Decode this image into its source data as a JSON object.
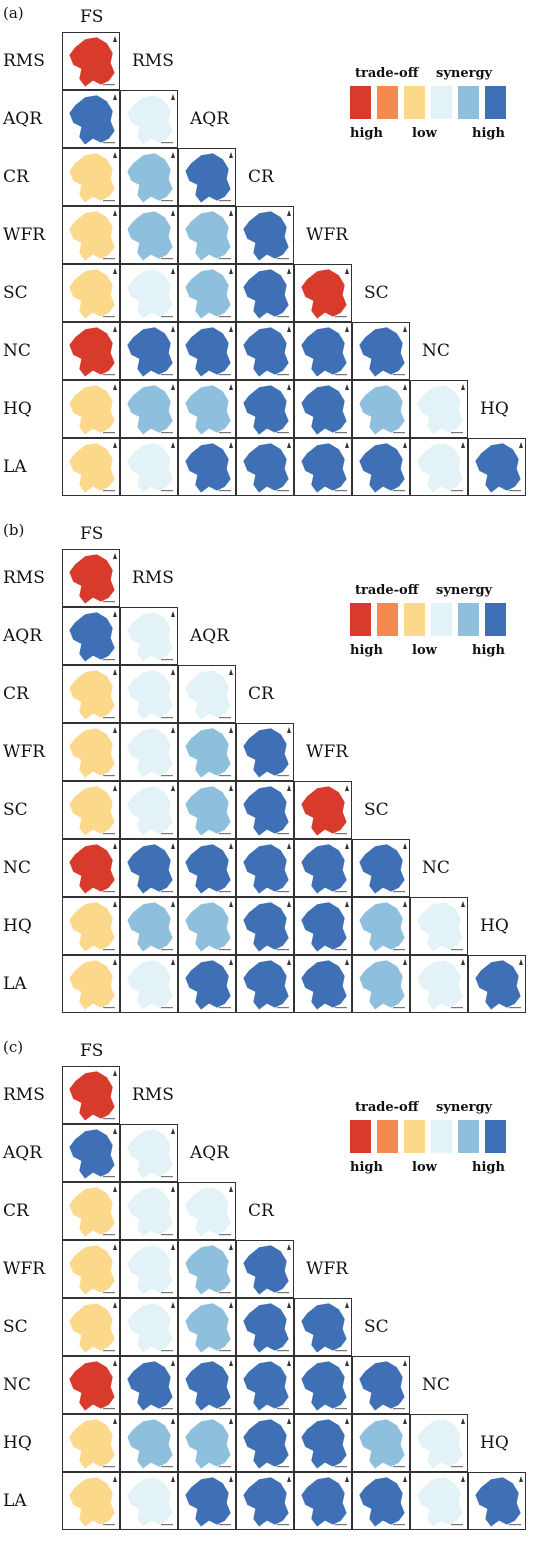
{
  "panels": [
    {
      "label": "(a)",
      "matrix": [
        [
          "cR"
        ],
        [
          "cb",
          "cl"
        ],
        [
          "cy",
          "cm",
          "cb"
        ],
        [
          "cy",
          "cm",
          "cm",
          "cb"
        ],
        [
          "cy",
          "cl",
          "cm",
          "cb",
          "cR"
        ],
        [
          "cR",
          "cb",
          "cb",
          "cb",
          "cb",
          "cb"
        ],
        [
          "cy",
          "cm",
          "cm",
          "cb",
          "cb",
          "cm",
          "cl"
        ],
        [
          "cy",
          "cl",
          "cb",
          "cb",
          "cb",
          "cb",
          "cl",
          "cb"
        ]
      ]
    },
    {
      "label": "(b)",
      "matrix": [
        [
          "cR"
        ],
        [
          "cb",
          "cl"
        ],
        [
          "cy",
          "cl",
          "cl"
        ],
        [
          "cy",
          "cl",
          "cm",
          "cb"
        ],
        [
          "cy",
          "cl",
          "cm",
          "cb",
          "cR"
        ],
        [
          "cR",
          "cb",
          "cb",
          "cb",
          "cb",
          "cb"
        ],
        [
          "cy",
          "cm",
          "cm",
          "cb",
          "cb",
          "cm",
          "cl"
        ],
        [
          "cy",
          "cl",
          "cb",
          "cb",
          "cb",
          "cm",
          "cl",
          "cb"
        ]
      ]
    },
    {
      "label": "(c)",
      "matrix": [
        [
          "cR"
        ],
        [
          "cb",
          "cl"
        ],
        [
          "cy",
          "cl",
          "cl"
        ],
        [
          "cy",
          "cl",
          "cm",
          "cb"
        ],
        [
          "cy",
          "cl",
          "cm",
          "cb",
          "cb"
        ],
        [
          "cR",
          "cb",
          "cb",
          "cb",
          "cb",
          "cb"
        ],
        [
          "cy",
          "cm",
          "cm",
          "cb",
          "cb",
          "cm",
          "cl"
        ],
        [
          "cy",
          "cl",
          "cb",
          "cb",
          "cb",
          "cb",
          "cl",
          "cb"
        ]
      ]
    }
  ],
  "rows": [
    "RMS",
    "AQR",
    "CR",
    "WFR",
    "SC",
    "NC",
    "HQ",
    "LA"
  ],
  "diagonal": [
    "RMS",
    "AQR",
    "CR",
    "WFR",
    "SC",
    "NC",
    "HQ"
  ],
  "top_label": "FS",
  "legend": {
    "tradeoff": "trade-off",
    "synergy": "synergy",
    "high_left": "high",
    "low": "low",
    "high_right": "high",
    "colors": [
      "#d83a2c",
      "#f48a4f",
      "#fbd88a",
      "#e2f2f7",
      "#8ebfdd",
      "#3f6fb4"
    ]
  },
  "colors": {
    "cR": "#d83a2c",
    "cy": "#fbd88a",
    "cl": "#e2f2f7",
    "cm": "#8ebfdd",
    "cb": "#3f6fb4"
  }
}
